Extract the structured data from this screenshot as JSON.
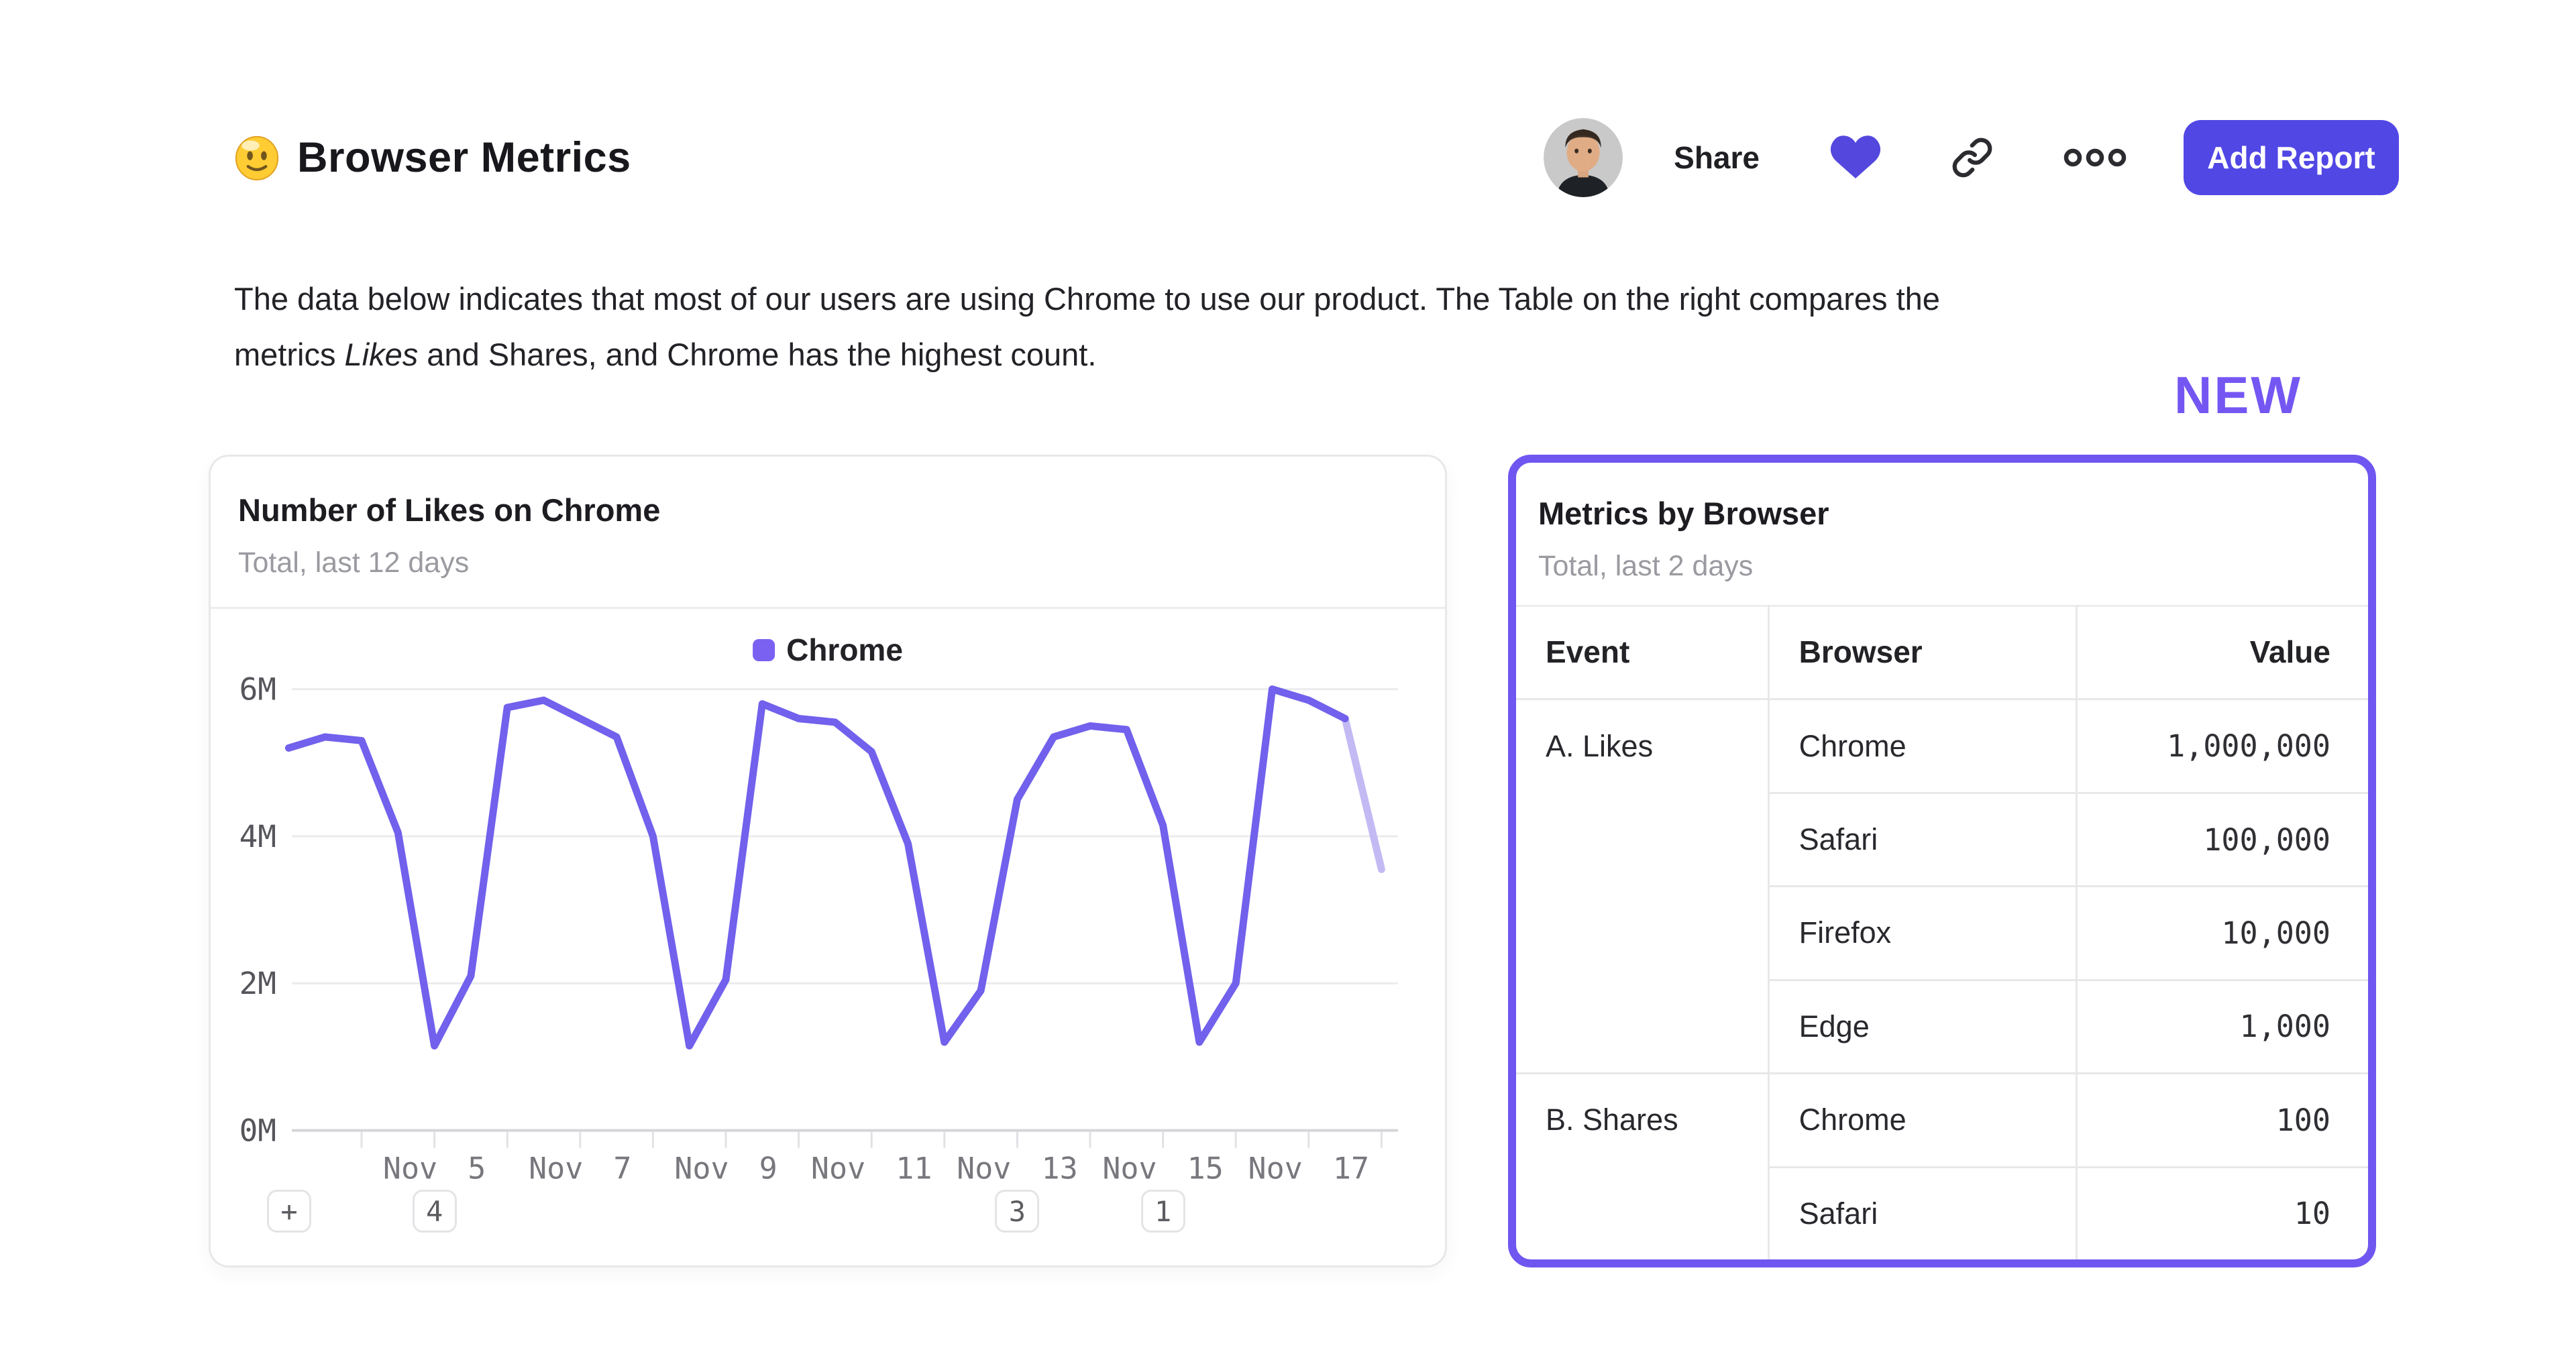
{
  "header": {
    "emoji": "🙂",
    "title": "Browser Metrics",
    "share_label": "Share",
    "add_report_label": "Add Report"
  },
  "description": {
    "line1": "The data below indicates that most of our users are using Chrome to use our product. The Table on the right compares the",
    "line2_pre": "metrics ",
    "line2_italic": "Likes",
    "line2_post": " and Shares, and Chrome has the highest count."
  },
  "new_badge": "NEW",
  "colors": {
    "accent_button": "#5147E5",
    "heart": "#5447DE",
    "new_label": "#7457F2",
    "table_card_border": "#7056F0",
    "chart_line": "#7161EC",
    "chart_line_faded": "#C3BAF4",
    "legend_swatch": "#7A61F2",
    "grid_line": "#ebebee",
    "axis_line": "#d5d5d9",
    "subtitle_grey": "#9a9aa0"
  },
  "chart_card": {
    "title": "Number of Likes on Chrome",
    "subtitle": "Total, last 12 days",
    "add_annotation_label": "+",
    "annotations": [
      {
        "label": "4",
        "day": 5
      },
      {
        "label": "3",
        "day": 13
      },
      {
        "label": "1",
        "day": 15
      }
    ]
  },
  "chart_data": {
    "type": "line",
    "title": "Number of Likes on Chrome",
    "subtitle": "Total, last 12 days",
    "legend_position": "top-center",
    "grid": "horizontal",
    "ylabel": "",
    "xlabel": "",
    "ylim_millions": [
      0,
      6
    ],
    "y_tick_labels": [
      "0M",
      "2M",
      "4M",
      "6M"
    ],
    "y_tick_values_millions": [
      0,
      2,
      4,
      6
    ],
    "x_tick_days_november": [
      4,
      5,
      6,
      7,
      8,
      9,
      10,
      11,
      12,
      13,
      14,
      15,
      16,
      17,
      18
    ],
    "x_label_days": [
      5,
      7,
      9,
      11,
      13,
      15,
      17
    ],
    "x_label_texts": [
      "Nov 5",
      "Nov 7",
      "Nov 9",
      "Nov 11",
      "Nov 13",
      "Nov 15",
      "Nov 17"
    ],
    "series": [
      {
        "name": "Chrome",
        "unit": "millions of likes",
        "x_start_day_november": 3,
        "x_step_days": 0.5,
        "faded_tail_points": 1,
        "values_millions": [
          5.2,
          5.35,
          5.3,
          4.05,
          1.15,
          2.1,
          5.75,
          5.85,
          5.6,
          5.35,
          4.0,
          1.15,
          2.05,
          5.8,
          5.6,
          5.55,
          5.15,
          3.9,
          1.2,
          1.9,
          4.5,
          5.35,
          5.5,
          5.45,
          4.15,
          1.2,
          2.0,
          6.0,
          5.85,
          5.6,
          3.55
        ]
      }
    ]
  },
  "table_card": {
    "title": "Metrics by Browser",
    "subtitle": "Total, last 2 days",
    "columns": [
      "Event",
      "Browser",
      "Value"
    ],
    "groups": [
      {
        "event": "A. Likes",
        "rows": [
          {
            "browser": "Chrome",
            "value": "1,000,000"
          },
          {
            "browser": "Safari",
            "value": "100,000"
          },
          {
            "browser": "Firefox",
            "value": "10,000"
          },
          {
            "browser": "Edge",
            "value": "1,000"
          }
        ]
      },
      {
        "event": "B. Shares",
        "rows": [
          {
            "browser": "Chrome",
            "value": "100"
          },
          {
            "browser": "Safari",
            "value": "10"
          }
        ]
      }
    ]
  }
}
